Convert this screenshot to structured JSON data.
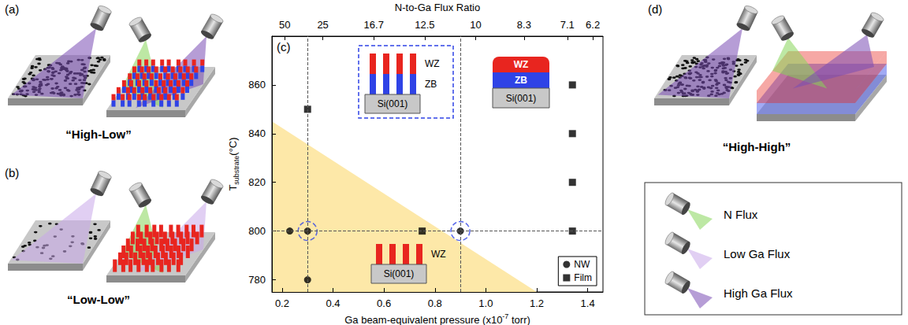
{
  "panels": {
    "a": {
      "label": "(a)",
      "caption": "“High-Low”"
    },
    "b": {
      "label": "(b)",
      "caption": "“Low-Low”"
    },
    "d": {
      "label": "(d)",
      "caption": "“High-High”"
    }
  },
  "flux_legend": [
    {
      "name": "N Flux",
      "color": "#86d65a"
    },
    {
      "name": "Low Ga Flux",
      "color": "#c9a7ea"
    },
    {
      "name": "High Ga Flux",
      "color": "#7a4cb4"
    }
  ],
  "chart_data": {
    "type": "scatter",
    "label": "(c)",
    "xlabel": {
      "text": "Ga beam-equivalent pressure (x10",
      "superscript": "-7",
      "after": " torr)"
    },
    "x2label": "N-to-Ga Flux Ratio",
    "ylabel": {
      "text": "T",
      "subscript": "substrate",
      "after": "(°C)"
    },
    "xlim": [
      0.16,
      1.46
    ],
    "xticks": [
      0.2,
      0.4,
      0.6,
      0.8,
      {
        "value": 1.0,
        "label": "1.0"
      },
      1.2,
      1.4
    ],
    "x2lim": [
      0.16,
      1.46
    ],
    "x2ticks": [
      {
        "value": 0.21,
        "label": "50"
      },
      {
        "value": 0.36,
        "label": "25"
      },
      {
        "value": 0.56,
        "label": "16.7"
      },
      {
        "value": 0.76,
        "label": "12.5"
      },
      {
        "value": 0.96,
        "label": "10"
      },
      {
        "value": 1.15,
        "label": "8.3"
      },
      {
        "value": 1.32,
        "label": "7.1"
      },
      {
        "value": 1.42,
        "label": "6.2"
      }
    ],
    "ylim": [
      775,
      880
    ],
    "yticks": [
      780,
      800,
      820,
      840,
      860
    ],
    "grid": false,
    "legend": "lower right",
    "series": [
      {
        "name": "NW",
        "marker": "circle",
        "color": "#000000",
        "x": [
          0.23,
          0.3,
          0.3,
          0.9
        ],
        "y": [
          800,
          800,
          780,
          800
        ]
      },
      {
        "name": "Film",
        "marker": "square",
        "color": "#000000",
        "x": [
          0.3,
          0.75,
          1.34,
          1.34,
          1.34,
          1.34
        ],
        "y": [
          850,
          800,
          800,
          820,
          840,
          860
        ]
      }
    ],
    "highlighted_points": {
      "x": [
        0.3,
        0.9
      ],
      "y": [
        800,
        800
      ],
      "color": "#2f43e6",
      "line_style": "dashed"
    },
    "reference_lines": {
      "x": [
        0.3,
        0.9
      ],
      "y": [
        800
      ],
      "color": "#555555",
      "line_style": "dashed"
    },
    "region": {
      "x": [
        0.16,
        0.16,
        1.2
      ],
      "y": [
        845,
        775,
        775
      ],
      "color": "#fde8a8"
    },
    "insets": [
      {
        "type": "nanowires",
        "layers": [
          "WZ",
          "ZB"
        ],
        "colors": [
          "#e8251f",
          "#2f43e6"
        ],
        "substrate": "Si(001)",
        "line_style": "dashed",
        "color": "#2f43e6"
      },
      {
        "type": "film",
        "layers": [
          "WZ",
          "ZB"
        ],
        "colors": [
          "#e8251f",
          "#2f43e6"
        ],
        "substrate": "Si(001)"
      },
      {
        "type": "nanowires",
        "layers": [
          "WZ"
        ],
        "colors": [
          "#e8251f"
        ],
        "substrate": "Si(001)"
      }
    ]
  }
}
